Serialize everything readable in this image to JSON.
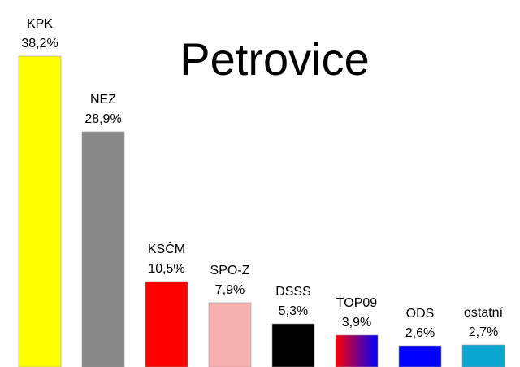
{
  "chart_data": {
    "type": "bar",
    "title": "Petrovice",
    "xlabel": "",
    "ylabel": "",
    "ylim": [
      0,
      40
    ],
    "grid": false,
    "legend": "none",
    "categories": [
      "KPK",
      "NEZ",
      "KSČM",
      "SPO-Z",
      "DSSS",
      "TOP09",
      "ODS",
      "ostatní"
    ],
    "values": [
      38.2,
      28.9,
      10.5,
      7.9,
      5.3,
      3.9,
      2.6,
      2.7
    ],
    "value_labels": [
      "38,2%",
      "28,9%",
      "10,5%",
      "7,9%",
      "5,3%",
      "3,9%",
      "2,6%",
      "2,7%"
    ],
    "colors": [
      "#ffff00",
      "#888888",
      "#ff0000",
      "#f7b1b1",
      "#000000",
      "gradient:#ff0000-#0000ff",
      "#0000ff",
      "#0aa5d0"
    ]
  }
}
